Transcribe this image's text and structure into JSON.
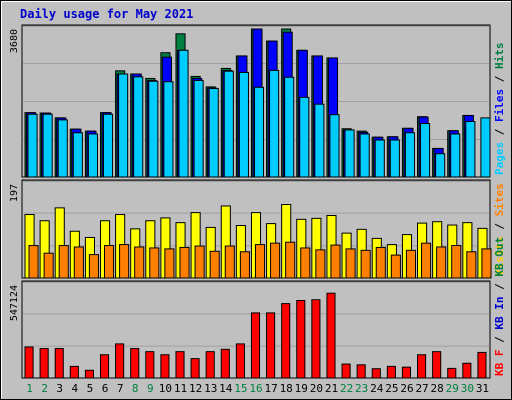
{
  "chart_data": {
    "type": "bar",
    "title": "Daily usage for May 2021",
    "categories": [
      "1",
      "2",
      "3",
      "4",
      "5",
      "6",
      "7",
      "8",
      "9",
      "10",
      "11",
      "12",
      "13",
      "14",
      "15",
      "16",
      "17",
      "18",
      "19",
      "20",
      "21",
      "22",
      "23",
      "24",
      "25",
      "26",
      "27",
      "28",
      "29",
      "30",
      "31"
    ],
    "weekend_days": [
      "1",
      "2",
      "8",
      "9",
      "15",
      "16",
      "22",
      "23",
      "29",
      "30"
    ],
    "panels": [
      {
        "name": "top",
        "ymax_label": "3680",
        "ylim": [
          0,
          3680
        ],
        "side_label": [
          {
            "text": "Pages",
            "color": "#00ccff"
          },
          {
            "text": " / ",
            "color": "#000000"
          },
          {
            "text": "Files",
            "color": "#0000ff"
          },
          {
            "text": " / ",
            "color": "#000000"
          },
          {
            "text": "Hits",
            "color": "#008040"
          }
        ],
        "series": [
          {
            "name": "Hits",
            "color": "#008040",
            "values": [
              1600,
              1590,
              1470,
              1190,
              1140,
              1600,
              2640,
              2560,
              2450,
              3090,
              3560,
              2500,
              2240,
              2700,
              3010,
              3680,
              3380,
              3680,
              3150,
              3010,
              2960,
              1200,
              1140,
              990,
              1000,
              1210,
              1500,
              710,
              1150,
              1530,
              0
            ]
          },
          {
            "name": "Files",
            "color": "#0000ff",
            "values": [
              1600,
              1590,
              1470,
              1190,
              1140,
              1600,
              2560,
              2560,
              2400,
              2980,
              3150,
              2450,
              2210,
              2650,
              3010,
              3680,
              3380,
              3600,
              3150,
              3010,
              2960,
              1170,
              1110,
              990,
              1000,
              1210,
              1490,
              710,
              1150,
              1530,
              0
            ]
          },
          {
            "name": "Pages",
            "color": "#00ccff",
            "values": [
              1560,
              1560,
              1420,
              1100,
              1070,
              1560,
              2560,
              2490,
              2380,
              2370,
              3150,
              2400,
              2200,
              2630,
              2600,
              2230,
              2650,
              2480,
              1980,
              1810,
              1550,
              1170,
              1070,
              920,
              920,
              1100,
              1330,
              580,
              1070,
              1380,
              1470
            ]
          }
        ]
      },
      {
        "name": "middle",
        "ymax_label": "197",
        "ylim": [
          0,
          197
        ],
        "side_label": [
          {
            "text": "Visits",
            "color": "#ffcc00"
          },
          {
            "text": " / ",
            "color": "#000000"
          },
          {
            "text": "Sites",
            "color": "#ff8000"
          }
        ],
        "series": [
          {
            "name": "Visits",
            "color": "#ffff00",
            "values": [
              133,
              120,
              147,
              98,
              85,
              120,
              133,
              103,
              120,
              126,
              116,
              137,
              106,
              151,
              110,
              137,
              114,
              154,
              123,
              125,
              131,
              94,
              102,
              83,
              70,
              91,
              115,
              118,
              111,
              116,
              104
            ]
          },
          {
            "name": "Sites",
            "color": "#ff8000",
            "values": [
              68,
              52,
              68,
              65,
              49,
              68,
              70,
              65,
              63,
              61,
              64,
              67,
              56,
              67,
              55,
              70,
              73,
              75,
              63,
              59,
              69,
              61,
              58,
              64,
              48,
              58,
              73,
              65,
              68,
              55,
              61
            ]
          }
        ]
      },
      {
        "name": "bottom",
        "ymax_label": "547124",
        "ylim": [
          0,
          600000
        ],
        "side_label": [
          {
            "text": "KB F",
            "color": "#ff0000"
          },
          {
            "text": " / ",
            "color": "#000000"
          },
          {
            "text": "KB In",
            "color": "#0000cc"
          },
          {
            "text": " / ",
            "color": "#000000"
          },
          {
            "text": "KB Out",
            "color": "#008040"
          }
        ],
        "series": [
          {
            "name": "KB F",
            "color": "#ff0000",
            "values": [
              200000,
              190000,
              190000,
              75000,
              50000,
              150000,
              220000,
              190000,
              170000,
              150000,
              170000,
              125000,
              170000,
              185000,
              220000,
              420000,
              420000,
              480000,
              500000,
              505000,
              547124,
              90000,
              85000,
              60000,
              75000,
              70000,
              150000,
              170000,
              62000,
              95000,
              165000
            ]
          }
        ]
      }
    ]
  }
}
